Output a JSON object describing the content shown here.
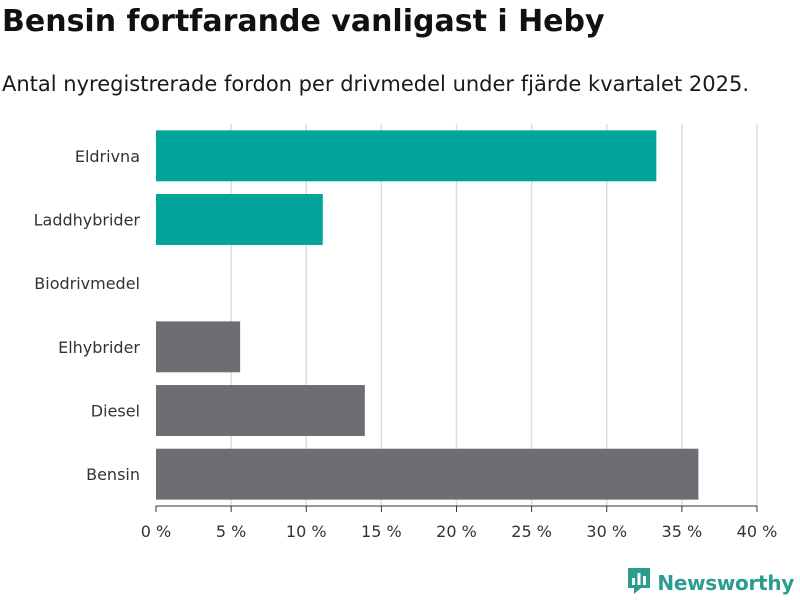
{
  "header": {
    "title": "Bensin fortfarande vanligast i Heby",
    "subtitle": "Antal nyregistrerade fordon per drivmedel under fjärde kvartalet 2025."
  },
  "brand": {
    "name": "Newsworthy",
    "logo_icon": "bar-chart-speech-bubble-icon",
    "color": "#2a9d8f"
  },
  "colors": {
    "electric": "#00a49a",
    "other": "#6e6d74",
    "grid": "#dddddd",
    "axis": "#333333"
  },
  "chart_data": {
    "type": "bar",
    "orientation": "horizontal",
    "title": "Bensin fortfarande vanligast i Heby",
    "subtitle": "Antal nyregistrerade fordon per drivmedel under fjärde kvartalet 2025.",
    "xlabel": "",
    "ylabel": "",
    "unit": "%",
    "xlim": [
      0,
      40
    ],
    "ticks": [
      0,
      5,
      10,
      15,
      20,
      25,
      30,
      35,
      40
    ],
    "tick_labels": [
      "0 %",
      "5 %",
      "10 %",
      "15 %",
      "20 %",
      "25 %",
      "30 %",
      "35 %",
      "40 %"
    ],
    "grid": true,
    "categories": [
      "Eldrivna",
      "Laddhybrider",
      "Biodrivmedel",
      "Elhybrider",
      "Diesel",
      "Bensin"
    ],
    "values": [
      33.3,
      11.1,
      0,
      5.6,
      13.9,
      36.1
    ],
    "bar_colors": [
      "#00a49a",
      "#00a49a",
      "#00a49a",
      "#6e6d74",
      "#6e6d74",
      "#6e6d74"
    ]
  }
}
